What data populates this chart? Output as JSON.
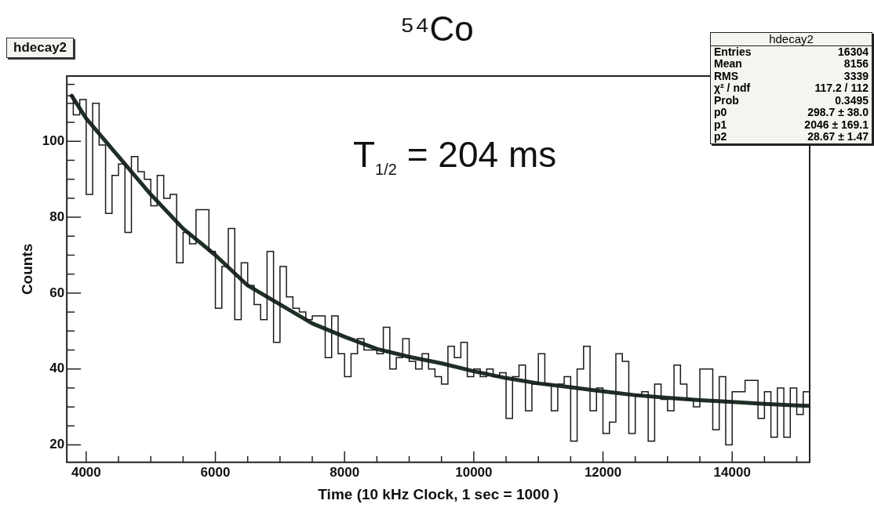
{
  "chart_data": {
    "type": "histogram",
    "title": "⁵⁴Co",
    "xlabel": "Time (10 kHz Clock, 1 sec = 1000 )",
    "ylabel": "Counts",
    "bins": [
      3700,
      3800,
      3900,
      4000,
      4100,
      4200,
      4300,
      4400,
      4500,
      4600,
      4700,
      4800,
      4900,
      5000,
      5100,
      5200,
      5300,
      5400,
      5500,
      5600,
      5700,
      5800,
      5900,
      6000,
      6100,
      6200,
      6300,
      6400,
      6500,
      6600,
      6700,
      6800,
      6900,
      7000,
      7100,
      7200,
      7300,
      7400,
      7500,
      7600,
      7700,
      7800,
      7900,
      8000,
      8100,
      8200,
      8300,
      8400,
      8500,
      8600,
      8700,
      8800,
      8900,
      9000,
      9100,
      9200,
      9300,
      9400,
      9500,
      9600,
      9700,
      9800,
      9900,
      10000,
      10100,
      10200,
      10300,
      10400,
      10500,
      10600,
      10700,
      10800,
      10900,
      11000,
      11100,
      11200,
      11300,
      11400,
      11500,
      11600,
      11700,
      11800,
      11900,
      12000,
      12100,
      12200,
      12300,
      12400,
      12500,
      12600,
      12700,
      12800,
      12900,
      13000,
      13100,
      13200,
      13300,
      13400,
      13500,
      13600,
      13700,
      13800,
      13900,
      14000,
      14100,
      14200,
      14300,
      14400,
      14500,
      14600,
      14700,
      14800,
      14900,
      15000,
      15100,
      15200
    ],
    "series": [
      {
        "type": "histogram",
        "color": "#1a1a1a",
        "values": [
          112,
          107,
          111,
          86,
          110,
          99,
          81,
          91,
          94,
          76,
          96,
          92,
          90,
          83,
          91,
          85,
          86,
          68,
          76,
          73,
          82,
          82,
          71,
          56,
          67,
          77,
          53,
          68,
          62,
          57,
          53,
          71,
          47,
          67,
          59,
          56,
          55,
          53,
          54,
          54,
          43,
          54,
          44,
          38,
          44,
          48,
          45,
          45,
          44,
          51,
          40,
          43,
          48,
          42,
          40,
          44,
          40,
          38,
          36,
          46,
          43,
          47,
          38,
          40,
          38,
          40,
          38,
          39,
          27,
          38,
          41,
          29,
          36,
          44,
          36,
          29,
          36,
          38,
          21,
          40,
          46,
          29,
          35,
          23,
          26,
          44,
          42,
          23,
          33,
          34,
          21,
          36,
          32,
          29,
          41,
          36,
          32,
          30,
          40,
          40,
          24,
          38,
          20,
          34,
          34,
          37,
          37,
          27,
          34,
          22,
          35,
          22,
          35,
          28,
          34
        ]
      },
      {
        "type": "line",
        "color": "#1f2f25",
        "x": [
          3775,
          4000,
          4500,
          5000,
          5500,
          6000,
          6500,
          7000,
          7500,
          8000,
          8500,
          9000,
          9500,
          10000,
          10500,
          11000,
          11500,
          12000,
          12500,
          13000,
          13500,
          14000,
          14500,
          15000,
          15200
        ],
        "values": [
          112,
          106,
          96,
          86,
          77,
          70,
          62,
          57,
          52,
          48.5,
          45.3,
          43.2,
          41.5,
          39.4,
          37.6,
          36.2,
          35.2,
          34.1,
          33.1,
          32.4,
          31.8,
          31.3,
          30.8,
          30.4,
          30.3
        ]
      }
    ],
    "xlim": [
      3700,
      15200
    ],
    "xticks": [
      4000,
      {
        "value": 4500,
        "label": null
      },
      {
        "value": 5000,
        "label": null
      },
      {
        "value": 5500,
        "label": null
      },
      6000,
      {
        "value": 6500,
        "label": null
      },
      {
        "value": 7000,
        "label": null
      },
      {
        "value": 7500,
        "label": null
      },
      8000,
      {
        "value": 8500,
        "label": null
      },
      {
        "value": 9000,
        "label": null
      },
      {
        "value": 9500,
        "label": null
      },
      10000,
      {
        "value": 10500,
        "label": null
      },
      {
        "value": 11000,
        "label": null
      },
      {
        "value": 11500,
        "label": null
      },
      12000,
      {
        "value": 12500,
        "label": null
      },
      {
        "value": 13000,
        "label": null
      },
      {
        "value": 13500,
        "label": null
      },
      14000,
      {
        "value": 14500,
        "label": null
      },
      {
        "value": 15000,
        "label": null
      }
    ],
    "ylim": [
      15.4,
      117.2
    ],
    "yticks": [
      20,
      {
        "value": 25,
        "label": null
      },
      {
        "value": 30,
        "label": null
      },
      {
        "value": 35,
        "label": null
      },
      40,
      {
        "value": 45,
        "label": null
      },
      {
        "value": 50,
        "label": null
      },
      {
        "value": 55,
        "label": null
      },
      60,
      {
        "value": 65,
        "label": null
      },
      {
        "value": 70,
        "label": null
      },
      {
        "value": 75,
        "label": null
      },
      80,
      {
        "value": 85,
        "label": null
      },
      {
        "value": 90,
        "label": null
      },
      {
        "value": 95,
        "label": null
      },
      100,
      {
        "value": 105,
        "label": null
      },
      {
        "value": 110,
        "label": null
      },
      {
        "value": 115,
        "label": null
      }
    ],
    "legend": false,
    "annotations": [
      "hdecay2",
      "T$_{1/2}$ = 204 ms",
      "hdecay2",
      "Entries\t16304",
      "Mean\t8156",
      "RMS\t3339",
      "χ² / ndf\t117.2 / 112",
      "Prob\t0.3495",
      "p0\t298.7 ± 38.0",
      "p1\t2046 ± 169.1",
      "p2\t28.67 ± 1.47"
    ]
  }
}
